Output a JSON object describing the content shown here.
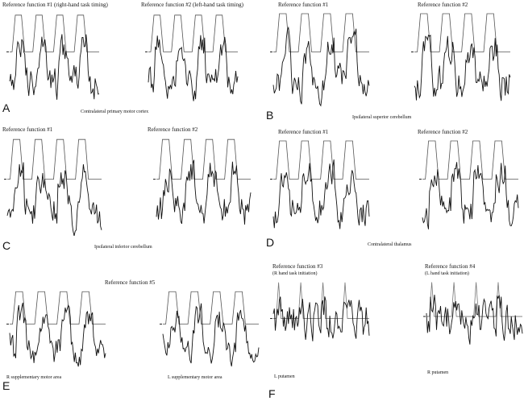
{
  "figure": {
    "panels": [
      {
        "letter": "A",
        "caption": "Contralateral primary motor cortex"
      },
      {
        "letter": "B",
        "caption": "Ipsilateral superior cerebellum"
      },
      {
        "letter": "C",
        "caption": "Ipsilateral inferior cerebellum"
      },
      {
        "letter": "D",
        "caption": "Contralateral thalamus"
      },
      {
        "letter": "E",
        "caption": ""
      },
      {
        "letter": "F",
        "caption": ""
      }
    ]
  },
  "chart_data": [
    {
      "type": "line",
      "panel": "A",
      "title": "Reference function #1 (right-hand task timing)",
      "series": [
        {
          "name": "Reference function #1",
          "kind": "boxcar",
          "blocks": 4
        },
        {
          "name": "signal",
          "kind": "noisy"
        }
      ]
    },
    {
      "type": "line",
      "panel": "A",
      "title": "Reference function #2 (left-hand task timing)",
      "series": [
        {
          "name": "Reference function #2",
          "kind": "boxcar",
          "blocks": 4
        },
        {
          "name": "signal",
          "kind": "noisy"
        }
      ]
    },
    {
      "type": "line",
      "panel": "B",
      "title": "Reference function #1",
      "series": [
        {
          "name": "Reference function #1",
          "kind": "boxcar",
          "blocks": 4
        },
        {
          "name": "signal",
          "kind": "noisy"
        }
      ]
    },
    {
      "type": "line",
      "panel": "B",
      "title": "Reference function #2",
      "series": [
        {
          "name": "Reference function #2",
          "kind": "boxcar",
          "blocks": 4
        },
        {
          "name": "signal",
          "kind": "noisy"
        }
      ]
    },
    {
      "type": "line",
      "panel": "C",
      "title": "Reference function #1",
      "series": [
        {
          "name": "Reference function #1",
          "kind": "boxcar",
          "blocks": 4
        },
        {
          "name": "signal",
          "kind": "noisy"
        }
      ]
    },
    {
      "type": "line",
      "panel": "C",
      "title": "Reference function #2",
      "series": [
        {
          "name": "Reference function #2",
          "kind": "boxcar",
          "blocks": 4
        },
        {
          "name": "signal",
          "kind": "noisy"
        }
      ]
    },
    {
      "type": "line",
      "panel": "D",
      "title": "Reference function #1",
      "series": [
        {
          "name": "Reference function #1",
          "kind": "boxcar",
          "blocks": 4
        },
        {
          "name": "signal",
          "kind": "noisy"
        }
      ]
    },
    {
      "type": "line",
      "panel": "D",
      "title": "Reference function #2",
      "series": [
        {
          "name": "Reference function #2",
          "kind": "boxcar",
          "blocks": 4
        },
        {
          "name": "signal",
          "kind": "noisy"
        }
      ]
    },
    {
      "type": "line",
      "panel": "E",
      "title": "Reference function #5",
      "caption": "R supplementary motor area",
      "series": [
        {
          "name": "Reference function #5",
          "kind": "boxcar",
          "blocks": 4
        },
        {
          "name": "signal",
          "kind": "noisy"
        }
      ]
    },
    {
      "type": "line",
      "panel": "E",
      "title": "",
      "caption": "L supplementary motor area",
      "series": [
        {
          "name": "Reference function #5",
          "kind": "boxcar",
          "blocks": 4
        },
        {
          "name": "signal",
          "kind": "noisy"
        }
      ]
    },
    {
      "type": "line",
      "panel": "F",
      "title": "Reference function #3",
      "subtitle": "(R hand task initiation)",
      "caption": "L putamen",
      "series": [
        {
          "name": "Reference function #3",
          "kind": "spikes",
          "blocks": 4
        },
        {
          "name": "signal",
          "kind": "noisy"
        }
      ]
    },
    {
      "type": "line",
      "panel": "F",
      "title": "Reference function #4",
      "subtitle": "(L hand task initiation)",
      "caption": "R putamen",
      "series": [
        {
          "name": "Reference function #4",
          "kind": "spikes",
          "blocks": 4
        },
        {
          "name": "signal",
          "kind": "noisy"
        }
      ]
    }
  ]
}
